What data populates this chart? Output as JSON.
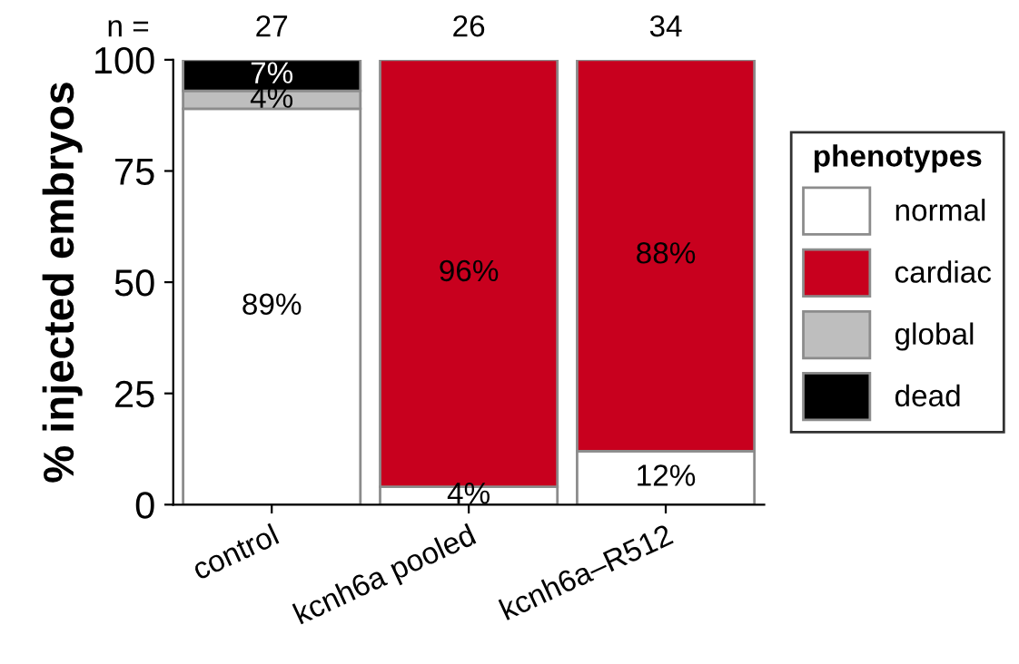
{
  "chart_data": {
    "type": "bar",
    "stacked": true,
    "ylabel": "% injected embryos",
    "legend_title": "phenotypes",
    "legend": "right",
    "categories": [
      "control",
      "kcnh6a pooled",
      "kcnh6a–R512"
    ],
    "series": [
      {
        "name": "normal",
        "color": "#ffffff",
        "values": [
          89,
          4,
          12
        ],
        "value_labels": [
          "89%",
          "4%",
          "12%"
        ]
      },
      {
        "name": "cardiac",
        "color": "#c8001e",
        "values": [
          null,
          96,
          88
        ],
        "value_labels": [
          null,
          "96%",
          "88%"
        ]
      },
      {
        "name": "global",
        "color": "#bebebe",
        "values": [
          4,
          null,
          null
        ],
        "value_labels": [
          "4%",
          null,
          null
        ]
      },
      {
        "name": "dead",
        "color": "#000000",
        "values": [
          7,
          null,
          null
        ],
        "value_labels": [
          "7%",
          null,
          null
        ]
      }
    ],
    "annotations": [
      "n =",
      "27",
      "26",
      "34"
    ],
    "ylim": [
      0,
      100
    ],
    "yticks": [
      0,
      25,
      50,
      75,
      100
    ],
    "grid": false
  }
}
